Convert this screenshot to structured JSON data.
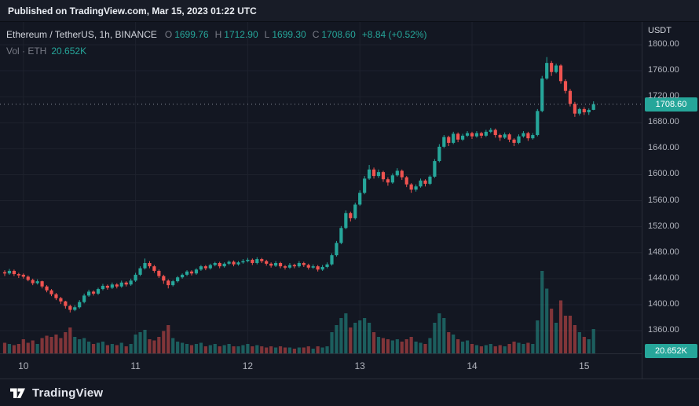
{
  "topbar": {
    "text": "Published on TradingView.com, Mar 15, 2023 01:22 UTC"
  },
  "legend": {
    "symbol": "Ethereum / TetherUS, 1h, BINANCE",
    "ohlc": [
      {
        "label": "O",
        "value": "1699.76"
      },
      {
        "label": "H",
        "value": "1712.90"
      },
      {
        "label": "L",
        "value": "1699.30"
      },
      {
        "label": "C",
        "value": "1708.60"
      }
    ],
    "change": "+8.84 (+0.52%)",
    "vol_label": "Vol · ETH",
    "vol_value": "20.652K"
  },
  "axes": {
    "currency": "USDT",
    "price_ticks": [
      "1800.00",
      "1760.00",
      "1720.00",
      "1680.00",
      "1640.00",
      "1600.00",
      "1560.00",
      "1520.00",
      "1480.00",
      "1440.00",
      "1400.00",
      "1360.00"
    ],
    "time_ticks": [
      {
        "label": "10",
        "i": 4
      },
      {
        "label": "11",
        "i": 28
      },
      {
        "label": "12",
        "i": 52
      },
      {
        "label": "13",
        "i": 76
      },
      {
        "label": "14",
        "i": 100
      },
      {
        "label": "15",
        "i": 124
      }
    ],
    "price_badge": "1708.60",
    "volume_badge": "20.652K"
  },
  "footer": {
    "brand": "TradingView"
  },
  "colors": {
    "up": "#26a69a",
    "down": "#ef5350",
    "bg": "#131722",
    "grid": "#1e222d",
    "muted": "#787b86",
    "text": "#d1d4dc",
    "last_price_line": "#8a8f9c"
  },
  "chart_data": {
    "type": "candlestick",
    "title": "Ethereum / TetherUS, 1h, BINANCE",
    "interval": "1h",
    "quote": "USDT",
    "legend_ohlc": {
      "open": 1699.76,
      "high": 1712.9,
      "low": 1699.3,
      "close": 1708.6,
      "change": 8.84,
      "change_pct": 0.52
    },
    "price_range": [
      1325,
      1835
    ],
    "last_price": 1708.6,
    "last_volume_k": 20.652,
    "x_day_labels": [
      "10",
      "11",
      "12",
      "13",
      "14",
      "15"
    ],
    "columns": [
      "open",
      "high",
      "low",
      "close",
      "volume_k"
    ],
    "candles": [
      [
        1450,
        1453,
        1444,
        1448,
        9
      ],
      [
        1448,
        1455,
        1446,
        1452,
        8
      ],
      [
        1452,
        1454,
        1444,
        1447,
        7
      ],
      [
        1447,
        1449,
        1441,
        1445,
        8
      ],
      [
        1446,
        1448,
        1440,
        1443,
        12
      ],
      [
        1443,
        1445,
        1436,
        1438,
        9
      ],
      [
        1438,
        1440,
        1430,
        1433,
        11
      ],
      [
        1433,
        1439,
        1431,
        1436,
        8
      ],
      [
        1436,
        1437,
        1425,
        1428,
        13
      ],
      [
        1428,
        1430,
        1419,
        1422,
        15
      ],
      [
        1422,
        1424,
        1413,
        1416,
        14
      ],
      [
        1416,
        1418,
        1407,
        1410,
        16
      ],
      [
        1410,
        1412,
        1401,
        1405,
        13
      ],
      [
        1405,
        1406,
        1394,
        1398,
        18
      ],
      [
        1398,
        1400,
        1388,
        1392,
        22
      ],
      [
        1392,
        1399,
        1390,
        1396,
        14
      ],
      [
        1396,
        1407,
        1394,
        1404,
        12
      ],
      [
        1404,
        1417,
        1402,
        1414,
        13
      ],
      [
        1414,
        1423,
        1412,
        1420,
        10
      ],
      [
        1420,
        1422,
        1414,
        1417,
        8
      ],
      [
        1417,
        1426,
        1415,
        1424,
        9
      ],
      [
        1424,
        1432,
        1422,
        1429,
        10
      ],
      [
        1429,
        1431,
        1423,
        1426,
        7
      ],
      [
        1426,
        1434,
        1424,
        1431,
        8
      ],
      [
        1431,
        1433,
        1425,
        1428,
        7
      ],
      [
        1428,
        1437,
        1426,
        1434,
        9
      ],
      [
        1434,
        1436,
        1428,
        1431,
        6
      ],
      [
        1431,
        1440,
        1429,
        1437,
        8
      ],
      [
        1437,
        1449,
        1435,
        1446,
        16
      ],
      [
        1446,
        1459,
        1444,
        1456,
        18
      ],
      [
        1456,
        1471,
        1454,
        1464,
        20
      ],
      [
        1464,
        1467,
        1456,
        1459,
        12
      ],
      [
        1459,
        1461,
        1449,
        1452,
        11
      ],
      [
        1452,
        1454,
        1441,
        1444,
        14
      ],
      [
        1444,
        1446,
        1432,
        1437,
        19
      ],
      [
        1437,
        1439,
        1425,
        1430,
        24
      ],
      [
        1430,
        1438,
        1428,
        1436,
        13
      ],
      [
        1436,
        1444,
        1434,
        1442,
        10
      ],
      [
        1442,
        1448,
        1440,
        1446,
        9
      ],
      [
        1446,
        1453,
        1444,
        1451,
        8
      ],
      [
        1451,
        1453,
        1445,
        1448,
        7
      ],
      [
        1448,
        1456,
        1446,
        1454,
        8
      ],
      [
        1454,
        1461,
        1452,
        1459,
        9
      ],
      [
        1459,
        1461,
        1453,
        1456,
        6
      ],
      [
        1456,
        1463,
        1454,
        1461,
        7
      ],
      [
        1461,
        1466,
        1459,
        1464,
        8
      ],
      [
        1464,
        1466,
        1456,
        1459,
        6
      ],
      [
        1459,
        1465,
        1457,
        1463,
        7
      ],
      [
        1463,
        1468,
        1461,
        1466,
        8
      ],
      [
        1466,
        1468,
        1459,
        1462,
        6
      ],
      [
        1462,
        1467,
        1460,
        1465,
        6
      ],
      [
        1465,
        1470,
        1463,
        1467,
        7
      ],
      [
        1467,
        1472,
        1465,
        1469,
        8
      ],
      [
        1469,
        1471,
        1461,
        1464,
        6
      ],
      [
        1464,
        1473,
        1462,
        1470,
        7
      ],
      [
        1470,
        1472,
        1464,
        1467,
        6
      ],
      [
        1467,
        1469,
        1460,
        1463,
        5
      ],
      [
        1463,
        1465,
        1457,
        1460,
        6
      ],
      [
        1460,
        1467,
        1458,
        1464,
        5
      ],
      [
        1464,
        1466,
        1456,
        1459,
        6
      ],
      [
        1459,
        1461,
        1454,
        1457,
        5
      ],
      [
        1457,
        1464,
        1455,
        1461,
        5
      ],
      [
        1461,
        1463,
        1456,
        1459,
        4
      ],
      [
        1459,
        1467,
        1457,
        1464,
        5
      ],
      [
        1464,
        1466,
        1458,
        1461,
        5
      ],
      [
        1461,
        1463,
        1454,
        1457,
        6
      ],
      [
        1457,
        1462,
        1455,
        1459,
        4
      ],
      [
        1459,
        1461,
        1451,
        1454,
        6
      ],
      [
        1454,
        1461,
        1452,
        1458,
        5
      ],
      [
        1458,
        1465,
        1456,
        1462,
        6
      ],
      [
        1462,
        1479,
        1460,
        1476,
        18
      ],
      [
        1476,
        1498,
        1474,
        1495,
        24
      ],
      [
        1495,
        1521,
        1493,
        1518,
        30
      ],
      [
        1518,
        1545,
        1516,
        1541,
        34
      ],
      [
        1541,
        1543,
        1528,
        1533,
        22
      ],
      [
        1533,
        1557,
        1531,
        1554,
        26
      ],
      [
        1554,
        1576,
        1552,
        1572,
        28
      ],
      [
        1572,
        1598,
        1570,
        1594,
        30
      ],
      [
        1594,
        1615,
        1592,
        1608,
        26
      ],
      [
        1608,
        1611,
        1594,
        1598,
        18
      ],
      [
        1598,
        1608,
        1595,
        1604,
        14
      ],
      [
        1604,
        1606,
        1589,
        1593,
        13
      ],
      [
        1593,
        1596,
        1583,
        1588,
        12
      ],
      [
        1588,
        1602,
        1586,
        1599,
        11
      ],
      [
        1599,
        1610,
        1597,
        1606,
        12
      ],
      [
        1606,
        1608,
        1592,
        1596,
        10
      ],
      [
        1596,
        1598,
        1581,
        1585,
        12
      ],
      [
        1585,
        1587,
        1572,
        1577,
        14
      ],
      [
        1577,
        1585,
        1574,
        1582,
        10
      ],
      [
        1582,
        1594,
        1580,
        1591,
        9
      ],
      [
        1591,
        1593,
        1582,
        1586,
        8
      ],
      [
        1586,
        1599,
        1584,
        1597,
        13
      ],
      [
        1597,
        1624,
        1595,
        1621,
        26
      ],
      [
        1621,
        1647,
        1619,
        1643,
        34
      ],
      [
        1643,
        1661,
        1641,
        1658,
        30
      ],
      [
        1658,
        1660,
        1644,
        1649,
        18
      ],
      [
        1649,
        1666,
        1647,
        1663,
        16
      ],
      [
        1663,
        1665,
        1650,
        1654,
        12
      ],
      [
        1654,
        1663,
        1652,
        1660,
        10
      ],
      [
        1660,
        1667,
        1658,
        1664,
        11
      ],
      [
        1664,
        1666,
        1655,
        1659,
        8
      ],
      [
        1659,
        1667,
        1657,
        1664,
        7
      ],
      [
        1664,
        1666,
        1656,
        1660,
        6
      ],
      [
        1660,
        1669,
        1658,
        1666,
        7
      ],
      [
        1666,
        1672,
        1664,
        1669,
        8
      ],
      [
        1669,
        1671,
        1657,
        1661,
        6
      ],
      [
        1661,
        1663,
        1652,
        1657,
        7
      ],
      [
        1657,
        1665,
        1655,
        1662,
        6
      ],
      [
        1662,
        1664,
        1650,
        1654,
        8
      ],
      [
        1654,
        1656,
        1644,
        1649,
        10
      ],
      [
        1649,
        1662,
        1647,
        1659,
        9
      ],
      [
        1659,
        1667,
        1657,
        1664,
        8
      ],
      [
        1664,
        1666,
        1652,
        1656,
        9
      ],
      [
        1656,
        1664,
        1654,
        1661,
        8
      ],
      [
        1661,
        1701,
        1659,
        1698,
        28
      ],
      [
        1698,
        1752,
        1696,
        1748,
        70
      ],
      [
        1748,
        1781,
        1746,
        1772,
        55
      ],
      [
        1772,
        1775,
        1752,
        1758,
        38
      ],
      [
        1758,
        1771,
        1756,
        1768,
        26
      ],
      [
        1768,
        1770,
        1740,
        1744,
        45
      ],
      [
        1744,
        1747,
        1725,
        1729,
        32
      ],
      [
        1729,
        1732,
        1705,
        1709,
        32
      ],
      [
        1709,
        1712,
        1689,
        1694,
        24
      ],
      [
        1694,
        1703,
        1691,
        1701,
        18
      ],
      [
        1701,
        1704,
        1692,
        1696,
        14
      ],
      [
        1696,
        1702,
        1692,
        1699.7,
        12
      ],
      [
        1699.76,
        1712.9,
        1699.3,
        1708.6,
        20.652
      ]
    ]
  }
}
